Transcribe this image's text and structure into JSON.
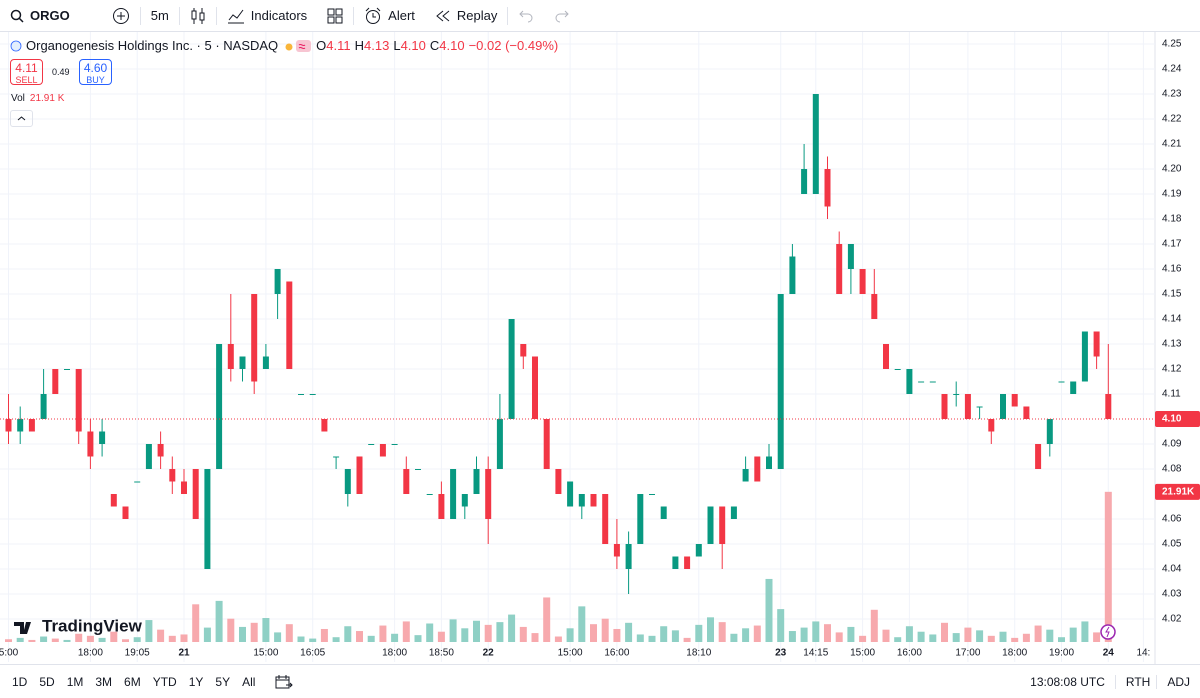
{
  "toolbar": {
    "symbol": "ORGO",
    "interval": "5m",
    "indicators": "Indicators",
    "alert": "Alert",
    "replay": "Replay"
  },
  "legend": {
    "title": "Organogenesis Holdings Inc. · 5 · NASDAQ",
    "ohlc": [
      {
        "key": "O",
        "value": "4.11"
      },
      {
        "key": "H",
        "value": "4.13"
      },
      {
        "key": "L",
        "value": "4.10"
      },
      {
        "key": "C",
        "value": "4.10"
      }
    ],
    "change": "−0.02 (−0.49%)",
    "sell_price": "4.11",
    "sell": "SELL",
    "spread": "0.49",
    "buy_price": "4.60",
    "buy": "BUY",
    "volume_key": "Vol",
    "volume_value": "21.91 K"
  },
  "logo": "TradingView",
  "bottom_bar": {
    "ranges": [
      "1D",
      "5D",
      "1M",
      "3M",
      "6M",
      "YTD",
      "1Y",
      "5Y",
      "All"
    ],
    "clock": "13:08:08 UTC",
    "session": "RTH",
    "adjust": "ADJ"
  },
  "chart_data": {
    "type": "candlestick",
    "categories": [
      "5:00",
      null,
      null,
      null,
      null,
      null,
      null,
      "18:00",
      null,
      null,
      null,
      "19:05",
      null,
      null,
      null,
      "21",
      null,
      null,
      null,
      null,
      null,
      null,
      "15:00",
      null,
      null,
      null,
      "16:05",
      null,
      null,
      null,
      null,
      null,
      null,
      "18:00",
      null,
      null,
      null,
      "18:50",
      null,
      null,
      null,
      "22",
      null,
      null,
      null,
      null,
      null,
      null,
      "15:00",
      null,
      null,
      null,
      "16:00",
      null,
      null,
      null,
      null,
      null,
      null,
      "18:10",
      null,
      null,
      null,
      null,
      null,
      null,
      "23",
      null,
      null,
      "14:15",
      null,
      null,
      null,
      "15:00",
      null,
      null,
      null,
      "16:00",
      null,
      null,
      null,
      null,
      "17:00",
      null,
      null,
      null,
      "18:00",
      null,
      null,
      null,
      "19:00",
      null,
      null,
      null,
      "24",
      null,
      null,
      "14:"
    ],
    "open": [
      4.1,
      4.095,
      4.1,
      4.1,
      4.12,
      4.12,
      4.12,
      4.095,
      4.09,
      4.07,
      4.065,
      4.075,
      4.08,
      4.09,
      4.08,
      4.075,
      4.08,
      4.04,
      4.08,
      4.13,
      4.12,
      4.15,
      4.12,
      4.15,
      4.155,
      4.11,
      4.11,
      4.1,
      4.085,
      4.07,
      4.085,
      4.09,
      4.09,
      4.09,
      4.08,
      4.08,
      4.07,
      4.07,
      4.06,
      4.065,
      4.07,
      4.08,
      4.08,
      4.1,
      4.13,
      4.125,
      4.1,
      4.08,
      4.065,
      4.065,
      4.07,
      4.07,
      4.05,
      4.04,
      4.05,
      4.07,
      4.06,
      4.04,
      4.045,
      4.045,
      4.05,
      4.065,
      4.06,
      4.075,
      4.085,
      4.08,
      4.08,
      4.15,
      4.19,
      4.19,
      4.2,
      4.17,
      4.16,
      4.16,
      4.15,
      4.13,
      4.12,
      4.11,
      4.115,
      4.115,
      4.11,
      4.11,
      4.11,
      4.105,
      4.1,
      4.1,
      4.11,
      4.105,
      4.09,
      4.09,
      4.115,
      4.11,
      4.115,
      4.135,
      4.11,
      null,
      null,
      null
    ],
    "high": [
      4.11,
      4.105,
      4.1,
      4.12,
      4.12,
      4.12,
      4.12,
      4.1,
      4.1,
      4.07,
      4.065,
      4.075,
      4.09,
      4.095,
      4.085,
      4.08,
      4.08,
      4.08,
      4.13,
      4.15,
      4.125,
      4.15,
      4.13,
      4.16,
      4.155,
      4.11,
      4.11,
      4.1,
      4.085,
      4.08,
      4.085,
      4.09,
      4.09,
      4.09,
      4.085,
      4.08,
      4.07,
      4.075,
      4.08,
      4.07,
      4.085,
      4.085,
      4.11,
      4.14,
      4.13,
      4.125,
      4.1,
      4.08,
      4.075,
      4.07,
      4.07,
      4.07,
      4.06,
      4.055,
      4.07,
      4.07,
      4.065,
      4.045,
      4.045,
      4.05,
      4.065,
      4.065,
      4.065,
      4.085,
      4.085,
      4.09,
      4.15,
      4.17,
      4.21,
      4.23,
      4.205,
      4.175,
      4.17,
      4.16,
      4.16,
      4.13,
      4.12,
      4.12,
      4.115,
      4.115,
      4.11,
      4.115,
      4.11,
      4.105,
      4.1,
      4.11,
      4.11,
      4.105,
      4.09,
      4.1,
      4.115,
      4.115,
      4.135,
      4.135,
      4.13,
      null,
      null,
      null
    ],
    "low": [
      4.09,
      4.09,
      4.095,
      4.1,
      4.11,
      4.12,
      4.09,
      4.08,
      4.085,
      4.065,
      4.06,
      4.075,
      4.08,
      4.08,
      4.07,
      4.07,
      4.06,
      4.04,
      4.08,
      4.115,
      4.115,
      4.11,
      4.12,
      4.14,
      4.12,
      4.11,
      4.11,
      4.095,
      4.08,
      4.065,
      4.07,
      4.09,
      4.085,
      4.09,
      4.07,
      4.08,
      4.07,
      4.06,
      4.06,
      4.06,
      4.07,
      4.05,
      4.08,
      4.1,
      4.12,
      4.1,
      4.08,
      4.07,
      4.065,
      4.06,
      4.065,
      4.05,
      4.04,
      4.03,
      4.05,
      4.07,
      4.06,
      4.04,
      4.04,
      4.045,
      4.05,
      4.04,
      4.06,
      4.075,
      4.075,
      4.08,
      4.08,
      4.15,
      4.19,
      4.19,
      4.18,
      4.15,
      4.15,
      4.15,
      4.14,
      4.12,
      4.12,
      4.11,
      4.115,
      4.115,
      4.1,
      4.105,
      4.1,
      4.1,
      4.09,
      4.1,
      4.105,
      4.1,
      4.08,
      4.085,
      4.115,
      4.11,
      4.115,
      4.12,
      4.1,
      null,
      null,
      null
    ],
    "close": [
      4.095,
      4.1,
      4.095,
      4.11,
      4.11,
      4.12,
      4.095,
      4.085,
      4.095,
      4.065,
      4.06,
      4.075,
      4.09,
      4.085,
      4.075,
      4.07,
      4.06,
      4.08,
      4.13,
      4.12,
      4.125,
      4.115,
      4.125,
      4.16,
      4.12,
      4.11,
      4.11,
      4.095,
      4.085,
      4.08,
      4.07,
      4.09,
      4.085,
      4.09,
      4.07,
      4.08,
      4.07,
      4.06,
      4.08,
      4.07,
      4.08,
      4.06,
      4.1,
      4.14,
      4.125,
      4.1,
      4.08,
      4.07,
      4.075,
      4.07,
      4.065,
      4.05,
      4.045,
      4.05,
      4.07,
      4.07,
      4.065,
      4.045,
      4.04,
      4.05,
      4.065,
      4.05,
      4.065,
      4.08,
      4.075,
      4.085,
      4.15,
      4.165,
      4.2,
      4.23,
      4.185,
      4.15,
      4.17,
      4.15,
      4.14,
      4.12,
      4.12,
      4.12,
      4.115,
      4.115,
      4.1,
      4.11,
      4.1,
      4.105,
      4.095,
      4.11,
      4.105,
      4.1,
      4.08,
      4.1,
      4.115,
      4.115,
      4.135,
      4.125,
      4.1,
      null,
      null,
      null
    ],
    "volume": [
      0.4,
      0.6,
      0.3,
      0.8,
      0.5,
      0.3,
      1.2,
      0.9,
      0.6,
      1.5,
      0.4,
      0.7,
      3.2,
      1.8,
      0.9,
      1.1,
      5.5,
      2.1,
      6.0,
      3.4,
      2.2,
      2.8,
      3.5,
      1.4,
      2.6,
      0.8,
      0.5,
      1.9,
      0.7,
      2.3,
      1.6,
      0.9,
      2.4,
      1.2,
      3.0,
      1.0,
      2.7,
      1.5,
      3.3,
      2.0,
      3.1,
      2.5,
      2.9,
      4.0,
      2.2,
      1.3,
      6.5,
      0.8,
      2.0,
      5.2,
      2.6,
      3.4,
      1.9,
      2.8,
      1.1,
      0.9,
      2.3,
      1.7,
      0.6,
      2.5,
      3.6,
      2.9,
      1.2,
      2.0,
      2.4,
      9.2,
      4.8,
      1.6,
      2.1,
      3.0,
      2.6,
      1.4,
      2.2,
      0.9,
      4.7,
      1.8,
      0.7,
      2.3,
      1.5,
      1.1,
      2.8,
      1.3,
      2.1,
      1.7,
      0.9,
      1.5,
      0.6,
      1.2,
      2.4,
      1.8,
      0.7,
      2.1,
      3.0,
      1.4,
      21.91,
      null,
      null,
      null
    ],
    "ylim": [
      4.0108,
      4.2548
    ],
    "yticks": [
      4.02,
      4.03,
      4.04,
      4.05,
      4.06,
      4.08,
      4.09,
      4.11,
      4.12,
      4.13,
      4.14,
      4.15,
      4.16,
      4.17,
      4.18,
      4.19,
      {
        "value": 4.2,
        "label": "4.20"
      },
      4.21,
      4.22,
      4.23,
      4.24,
      4.25
    ],
    "y2lim": [
      0,
      89
    ],
    "last_price": {
      "value": 4.1,
      "label": "4.10"
    },
    "volume_label": "21.91K",
    "up_color": "#089981",
    "down_color": "#f23645",
    "up_volume_color": "#8fd0c5",
    "down_volume_color": "#f7a9ad",
    "grid": true
  }
}
